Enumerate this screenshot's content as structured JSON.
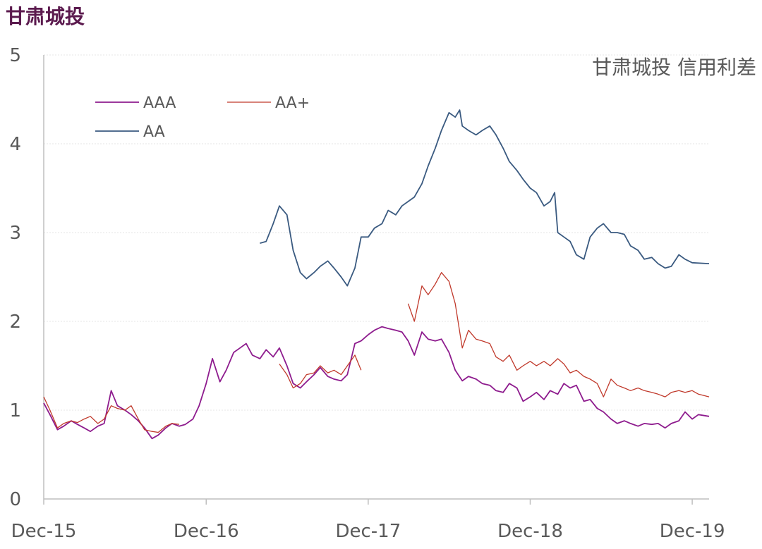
{
  "page_title": "甘肃城投",
  "chart_data": {
    "type": "line",
    "title": "甘肃城投 信用利差",
    "xlabel": "",
    "ylabel": "",
    "ylim": [
      0,
      5
    ],
    "yticks": [
      "0",
      "1",
      "2",
      "3",
      "4",
      "5"
    ],
    "xticks": [
      "Dec-15",
      "Dec-16",
      "Dec-17",
      "Dec-18",
      "Dec-19"
    ],
    "xlim": [
      "2015-12-01",
      "2020-01-08"
    ],
    "grid": "horizontal",
    "legend": "top-left",
    "series": [
      {
        "name": "AAA",
        "color": "#8e1c8e",
        "points": [
          [
            "2015-12-01",
            1.08
          ],
          [
            "2015-12-15",
            0.95
          ],
          [
            "2016-01-01",
            0.78
          ],
          [
            "2016-01-15",
            0.82
          ],
          [
            "2016-02-01",
            0.88
          ],
          [
            "2016-02-15",
            0.84
          ],
          [
            "2016-03-01",
            0.8
          ],
          [
            "2016-03-15",
            0.76
          ],
          [
            "2016-04-01",
            0.82
          ],
          [
            "2016-04-15",
            0.85
          ],
          [
            "2016-05-01",
            1.22
          ],
          [
            "2016-05-15",
            1.05
          ],
          [
            "2016-06-01",
            1.0
          ],
          [
            "2016-06-15",
            0.95
          ],
          [
            "2016-07-01",
            0.88
          ],
          [
            "2016-07-15",
            0.8
          ],
          [
            "2016-08-01",
            0.68
          ],
          [
            "2016-08-15",
            0.72
          ],
          [
            "2016-09-01",
            0.8
          ],
          [
            "2016-09-15",
            0.85
          ],
          [
            "2016-10-01",
            0.82
          ],
          [
            "2016-10-15",
            0.84
          ],
          [
            "2016-11-01",
            0.9
          ],
          [
            "2016-11-15",
            1.05
          ],
          [
            "2016-12-01",
            1.3
          ],
          [
            "2016-12-15",
            1.58
          ],
          [
            "2017-01-01",
            1.32
          ],
          [
            "2017-01-15",
            1.45
          ],
          [
            "2017-02-01",
            1.65
          ],
          [
            "2017-02-15",
            1.7
          ],
          [
            "2017-03-01",
            1.75
          ],
          [
            "2017-03-15",
            1.62
          ],
          [
            "2017-04-01",
            1.58
          ],
          [
            "2017-04-15",
            1.68
          ],
          [
            "2017-05-01",
            1.6
          ],
          [
            "2017-05-15",
            1.7
          ],
          [
            "2017-06-01",
            1.5
          ],
          [
            "2017-06-15",
            1.3
          ],
          [
            "2017-07-01",
            1.25
          ],
          [
            "2017-07-15",
            1.32
          ],
          [
            "2017-08-01",
            1.4
          ],
          [
            "2017-08-15",
            1.48
          ],
          [
            "2017-09-01",
            1.38
          ],
          [
            "2017-09-15",
            1.35
          ],
          [
            "2017-10-01",
            1.33
          ],
          [
            "2017-10-15",
            1.4
          ],
          [
            "2017-11-01",
            1.75
          ],
          [
            "2017-11-15",
            1.78
          ],
          [
            "2017-12-01",
            1.85
          ],
          [
            "2017-12-15",
            1.9
          ],
          [
            "2018-01-01",
            1.94
          ],
          [
            "2018-01-15",
            1.92
          ],
          [
            "2018-02-01",
            1.9
          ],
          [
            "2018-02-15",
            1.88
          ],
          [
            "2018-03-01",
            1.78
          ],
          [
            "2018-03-15",
            1.62
          ],
          [
            "2018-04-01",
            1.88
          ],
          [
            "2018-04-15",
            1.8
          ],
          [
            "2018-05-01",
            1.78
          ],
          [
            "2018-05-15",
            1.8
          ],
          [
            "2018-06-01",
            1.65
          ],
          [
            "2018-06-15",
            1.45
          ],
          [
            "2018-07-01",
            1.33
          ],
          [
            "2018-07-15",
            1.38
          ],
          [
            "2018-08-01",
            1.35
          ],
          [
            "2018-08-15",
            1.3
          ],
          [
            "2018-09-01",
            1.28
          ],
          [
            "2018-09-15",
            1.22
          ],
          [
            "2018-10-01",
            1.2
          ],
          [
            "2018-10-15",
            1.3
          ],
          [
            "2018-11-01",
            1.25
          ],
          [
            "2018-11-15",
            1.1
          ],
          [
            "2018-12-01",
            1.15
          ],
          [
            "2018-12-15",
            1.2
          ],
          [
            "2019-01-01",
            1.12
          ],
          [
            "2019-01-15",
            1.22
          ],
          [
            "2019-02-01",
            1.18
          ],
          [
            "2019-02-15",
            1.3
          ],
          [
            "2019-03-01",
            1.25
          ],
          [
            "2019-03-15",
            1.28
          ],
          [
            "2019-04-01",
            1.1
          ],
          [
            "2019-04-15",
            1.12
          ],
          [
            "2019-05-01",
            1.02
          ],
          [
            "2019-05-15",
            0.98
          ],
          [
            "2019-06-01",
            0.9
          ],
          [
            "2019-06-15",
            0.85
          ],
          [
            "2019-07-01",
            0.88
          ],
          [
            "2019-07-15",
            0.85
          ],
          [
            "2019-08-01",
            0.82
          ],
          [
            "2019-08-15",
            0.85
          ],
          [
            "2019-09-01",
            0.84
          ],
          [
            "2019-09-15",
            0.85
          ],
          [
            "2019-10-01",
            0.8
          ],
          [
            "2019-10-15",
            0.85
          ],
          [
            "2019-11-01",
            0.88
          ],
          [
            "2019-11-15",
            0.98
          ],
          [
            "2019-12-01",
            0.9
          ],
          [
            "2019-12-15",
            0.95
          ],
          [
            "2020-01-08",
            0.93
          ]
        ]
      },
      {
        "name": "AA+",
        "color": "#c0392b",
        "segments": [
          [
            [
              "2015-12-01",
              1.15
            ],
            [
              "2015-12-15",
              1.0
            ],
            [
              "2016-01-01",
              0.8
            ],
            [
              "2016-01-15",
              0.85
            ],
            [
              "2016-02-01",
              0.88
            ],
            [
              "2016-02-15",
              0.86
            ],
            [
              "2016-03-01",
              0.9
            ],
            [
              "2016-03-15",
              0.93
            ],
            [
              "2016-04-01",
              0.85
            ],
            [
              "2016-04-15",
              0.9
            ],
            [
              "2016-05-01",
              1.05
            ],
            [
              "2016-05-15",
              1.02
            ],
            [
              "2016-06-01",
              1.0
            ],
            [
              "2016-06-15",
              1.05
            ],
            [
              "2016-07-01",
              0.9
            ],
            [
              "2016-07-15",
              0.78
            ],
            [
              "2016-08-01",
              0.76
            ],
            [
              "2016-08-15",
              0.75
            ],
            [
              "2016-09-01",
              0.82
            ],
            [
              "2016-09-15",
              0.85
            ],
            [
              "2016-10-01",
              0.84
            ]
          ],
          [
            [
              "2017-05-15",
              1.52
            ],
            [
              "2017-06-01",
              1.4
            ],
            [
              "2017-06-15",
              1.25
            ],
            [
              "2017-07-01",
              1.3
            ],
            [
              "2017-07-15",
              1.4
            ],
            [
              "2017-08-01",
              1.42
            ],
            [
              "2017-08-15",
              1.5
            ],
            [
              "2017-09-01",
              1.42
            ],
            [
              "2017-09-15",
              1.45
            ],
            [
              "2017-10-01",
              1.4
            ],
            [
              "2017-10-15",
              1.5
            ],
            [
              "2017-11-01",
              1.62
            ],
            [
              "2017-11-15",
              1.45
            ]
          ],
          [
            [
              "2018-03-01",
              2.2
            ],
            [
              "2018-03-15",
              2.0
            ],
            [
              "2018-04-01",
              2.4
            ],
            [
              "2018-04-15",
              2.3
            ],
            [
              "2018-05-01",
              2.42
            ],
            [
              "2018-05-15",
              2.55
            ],
            [
              "2018-06-01",
              2.45
            ],
            [
              "2018-06-15",
              2.2
            ],
            [
              "2018-07-01",
              1.7
            ],
            [
              "2018-07-15",
              1.9
            ],
            [
              "2018-08-01",
              1.8
            ],
            [
              "2018-08-15",
              1.78
            ],
            [
              "2018-09-01",
              1.75
            ],
            [
              "2018-09-15",
              1.6
            ],
            [
              "2018-10-01",
              1.55
            ],
            [
              "2018-10-15",
              1.62
            ],
            [
              "2018-11-01",
              1.45
            ],
            [
              "2018-11-15",
              1.5
            ],
            [
              "2018-12-01",
              1.55
            ],
            [
              "2018-12-15",
              1.5
            ],
            [
              "2019-01-01",
              1.55
            ],
            [
              "2019-01-15",
              1.5
            ],
            [
              "2019-02-01",
              1.58
            ],
            [
              "2019-02-15",
              1.52
            ],
            [
              "2019-03-01",
              1.42
            ],
            [
              "2019-03-15",
              1.45
            ],
            [
              "2019-04-01",
              1.38
            ],
            [
              "2019-04-15",
              1.35
            ],
            [
              "2019-05-01",
              1.3
            ],
            [
              "2019-05-15",
              1.15
            ],
            [
              "2019-06-01",
              1.35
            ],
            [
              "2019-06-15",
              1.28
            ],
            [
              "2019-07-01",
              1.25
            ],
            [
              "2019-07-15",
              1.22
            ],
            [
              "2019-08-01",
              1.25
            ],
            [
              "2019-08-15",
              1.22
            ],
            [
              "2019-09-01",
              1.2
            ],
            [
              "2019-09-15",
              1.18
            ],
            [
              "2019-10-01",
              1.15
            ],
            [
              "2019-10-15",
              1.2
            ],
            [
              "2019-11-01",
              1.22
            ],
            [
              "2019-11-15",
              1.2
            ],
            [
              "2019-12-01",
              1.22
            ],
            [
              "2019-12-15",
              1.18
            ],
            [
              "2020-01-08",
              1.15
            ]
          ]
        ]
      },
      {
        "name": "AA",
        "color": "#3a5a80",
        "points": [
          [
            "2017-04-01",
            2.88
          ],
          [
            "2017-04-15",
            2.9
          ],
          [
            "2017-05-01",
            3.1
          ],
          [
            "2017-05-15",
            3.3
          ],
          [
            "2017-06-01",
            3.2
          ],
          [
            "2017-06-15",
            2.8
          ],
          [
            "2017-07-01",
            2.55
          ],
          [
            "2017-07-15",
            2.48
          ],
          [
            "2017-08-01",
            2.55
          ],
          [
            "2017-08-15",
            2.62
          ],
          [
            "2017-09-01",
            2.68
          ],
          [
            "2017-09-15",
            2.6
          ],
          [
            "2017-10-01",
            2.5
          ],
          [
            "2017-10-15",
            2.4
          ],
          [
            "2017-11-01",
            2.6
          ],
          [
            "2017-11-15",
            2.95
          ],
          [
            "2017-12-01",
            2.95
          ],
          [
            "2017-12-15",
            3.05
          ],
          [
            "2018-01-01",
            3.1
          ],
          [
            "2018-01-15",
            3.25
          ],
          [
            "2018-02-01",
            3.2
          ],
          [
            "2018-02-15",
            3.3
          ],
          [
            "2018-03-01",
            3.35
          ],
          [
            "2018-03-15",
            3.4
          ],
          [
            "2018-04-01",
            3.55
          ],
          [
            "2018-04-15",
            3.75
          ],
          [
            "2018-05-01",
            3.95
          ],
          [
            "2018-05-15",
            4.15
          ],
          [
            "2018-06-01",
            4.35
          ],
          [
            "2018-06-15",
            4.3
          ],
          [
            "2018-06-25",
            4.38
          ],
          [
            "2018-07-01",
            4.2
          ],
          [
            "2018-07-15",
            4.15
          ],
          [
            "2018-08-01",
            4.1
          ],
          [
            "2018-08-15",
            4.15
          ],
          [
            "2018-09-01",
            4.2
          ],
          [
            "2018-09-15",
            4.1
          ],
          [
            "2018-10-01",
            3.95
          ],
          [
            "2018-10-15",
            3.8
          ],
          [
            "2018-11-01",
            3.7
          ],
          [
            "2018-11-15",
            3.6
          ],
          [
            "2018-12-01",
            3.5
          ],
          [
            "2018-12-15",
            3.45
          ],
          [
            "2019-01-01",
            3.3
          ],
          [
            "2019-01-15",
            3.35
          ],
          [
            "2019-01-25",
            3.45
          ],
          [
            "2019-02-01",
            3.0
          ],
          [
            "2019-02-15",
            2.95
          ],
          [
            "2019-03-01",
            2.9
          ],
          [
            "2019-03-15",
            2.75
          ],
          [
            "2019-04-01",
            2.7
          ],
          [
            "2019-04-15",
            2.95
          ],
          [
            "2019-05-01",
            3.05
          ],
          [
            "2019-05-15",
            3.1
          ],
          [
            "2019-06-01",
            3.0
          ],
          [
            "2019-06-15",
            3.0
          ],
          [
            "2019-07-01",
            2.98
          ],
          [
            "2019-07-15",
            2.85
          ],
          [
            "2019-08-01",
            2.8
          ],
          [
            "2019-08-15",
            2.7
          ],
          [
            "2019-09-01",
            2.72
          ],
          [
            "2019-09-15",
            2.65
          ],
          [
            "2019-10-01",
            2.6
          ],
          [
            "2019-10-15",
            2.62
          ],
          [
            "2019-11-01",
            2.75
          ],
          [
            "2019-11-15",
            2.7
          ],
          [
            "2019-12-01",
            2.66
          ],
          [
            "2020-01-08",
            2.65
          ]
        ]
      }
    ]
  }
}
